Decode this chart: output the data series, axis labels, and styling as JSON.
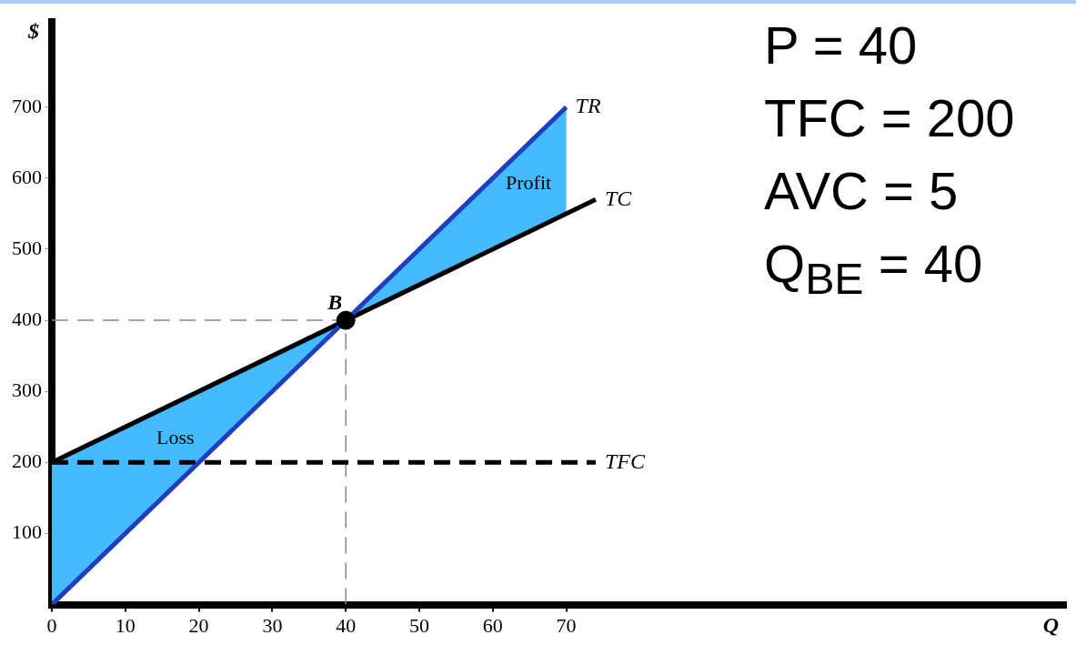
{
  "chart_data": {
    "type": "line",
    "xlabel": "Q",
    "ylabel": "$",
    "xlim": [
      0,
      138
    ],
    "ylim": [
      0,
      820
    ],
    "xticks": [
      0,
      10,
      20,
      30,
      40,
      50,
      60,
      70
    ],
    "yticks": [
      100,
      200,
      300,
      400,
      500,
      600,
      700
    ],
    "grid": false,
    "legend": false,
    "marker": "none",
    "series": [
      {
        "name": "TR",
        "color": "#1f3fbf",
        "x": [
          0,
          70
        ],
        "values": [
          0,
          700
        ]
      },
      {
        "name": "TC",
        "color": "#000000",
        "x": [
          0,
          74
        ],
        "values": [
          200,
          570
        ]
      },
      {
        "name": "TFC",
        "color": "#000000",
        "x": [
          0,
          74
        ],
        "values": [
          200,
          200
        ],
        "line_style": "dashed"
      },
      {
        "color": "#888888",
        "x": [
          0,
          40
        ],
        "values": [
          400,
          400
        ],
        "line_style": "dashed"
      },
      {
        "color": "#888888",
        "x": [
          40,
          40
        ],
        "values": [
          0,
          400
        ],
        "line_style": "dashed"
      },
      {
        "type": "scatter",
        "color": "#000000",
        "x": [
          40
        ],
        "values": [
          400
        ],
        "marker": "circle"
      }
    ],
    "annotations": [
      {
        "text": "B",
        "x": 40,
        "y": 400
      },
      "Loss",
      "Profit",
      "P = 40",
      "TFC = 200",
      "AVC = 5",
      "Q$_{BE}$ = 40"
    ]
  }
}
